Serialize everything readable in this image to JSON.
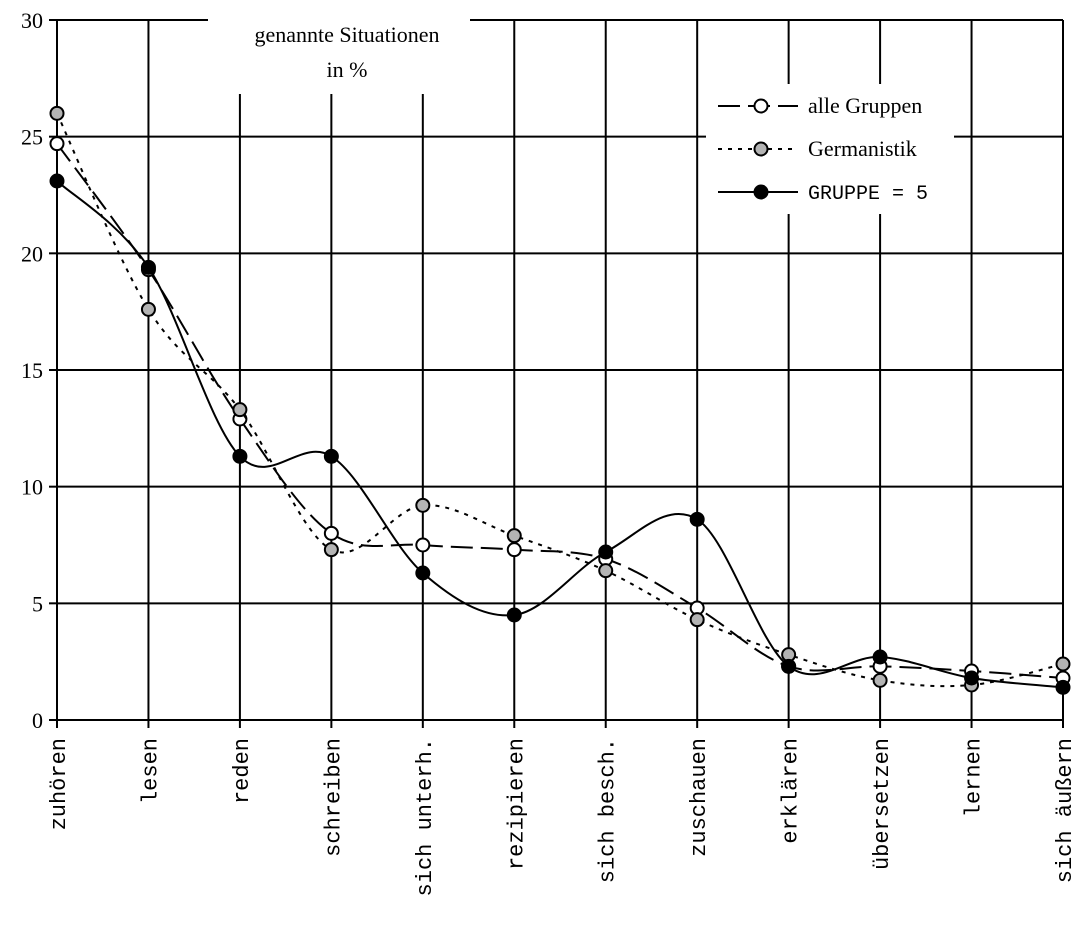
{
  "chart_data": {
    "type": "line",
    "title_lines": [
      "genannte Situationen",
      "in %"
    ],
    "xlabel": "",
    "ylabel": "",
    "ylim": [
      0,
      30
    ],
    "yticks": [
      0,
      5,
      10,
      15,
      20,
      25,
      30
    ],
    "grid": true,
    "legend_position": "top-right",
    "categories": [
      "zuhören",
      "lesen",
      "reden",
      "schreiben",
      "sich unterh.",
      "rezipieren",
      "sich besch.",
      "zuschauen",
      "erklären",
      "übersetzen",
      "lernen",
      "sich äußern"
    ],
    "series": [
      {
        "name": "alle Gruppen",
        "style": "dashed",
        "marker_fill": "#ffffff",
        "values": [
          24.7,
          19.3,
          12.9,
          8.0,
          7.5,
          7.3,
          6.9,
          4.8,
          2.3,
          2.3,
          2.1,
          1.8
        ]
      },
      {
        "name": "Germanistik",
        "style": "dotted",
        "marker_fill": "#b4b4b4",
        "values": [
          26.0,
          17.6,
          13.3,
          7.3,
          9.2,
          7.9,
          6.4,
          4.3,
          2.8,
          1.7,
          1.5,
          2.4
        ]
      },
      {
        "name": "GRUPPE = 5",
        "style": "solid",
        "marker_fill": "#000000",
        "values": [
          23.1,
          19.4,
          11.3,
          11.3,
          6.3,
          4.5,
          7.2,
          8.6,
          2.3,
          2.7,
          1.8,
          1.4
        ]
      }
    ]
  }
}
